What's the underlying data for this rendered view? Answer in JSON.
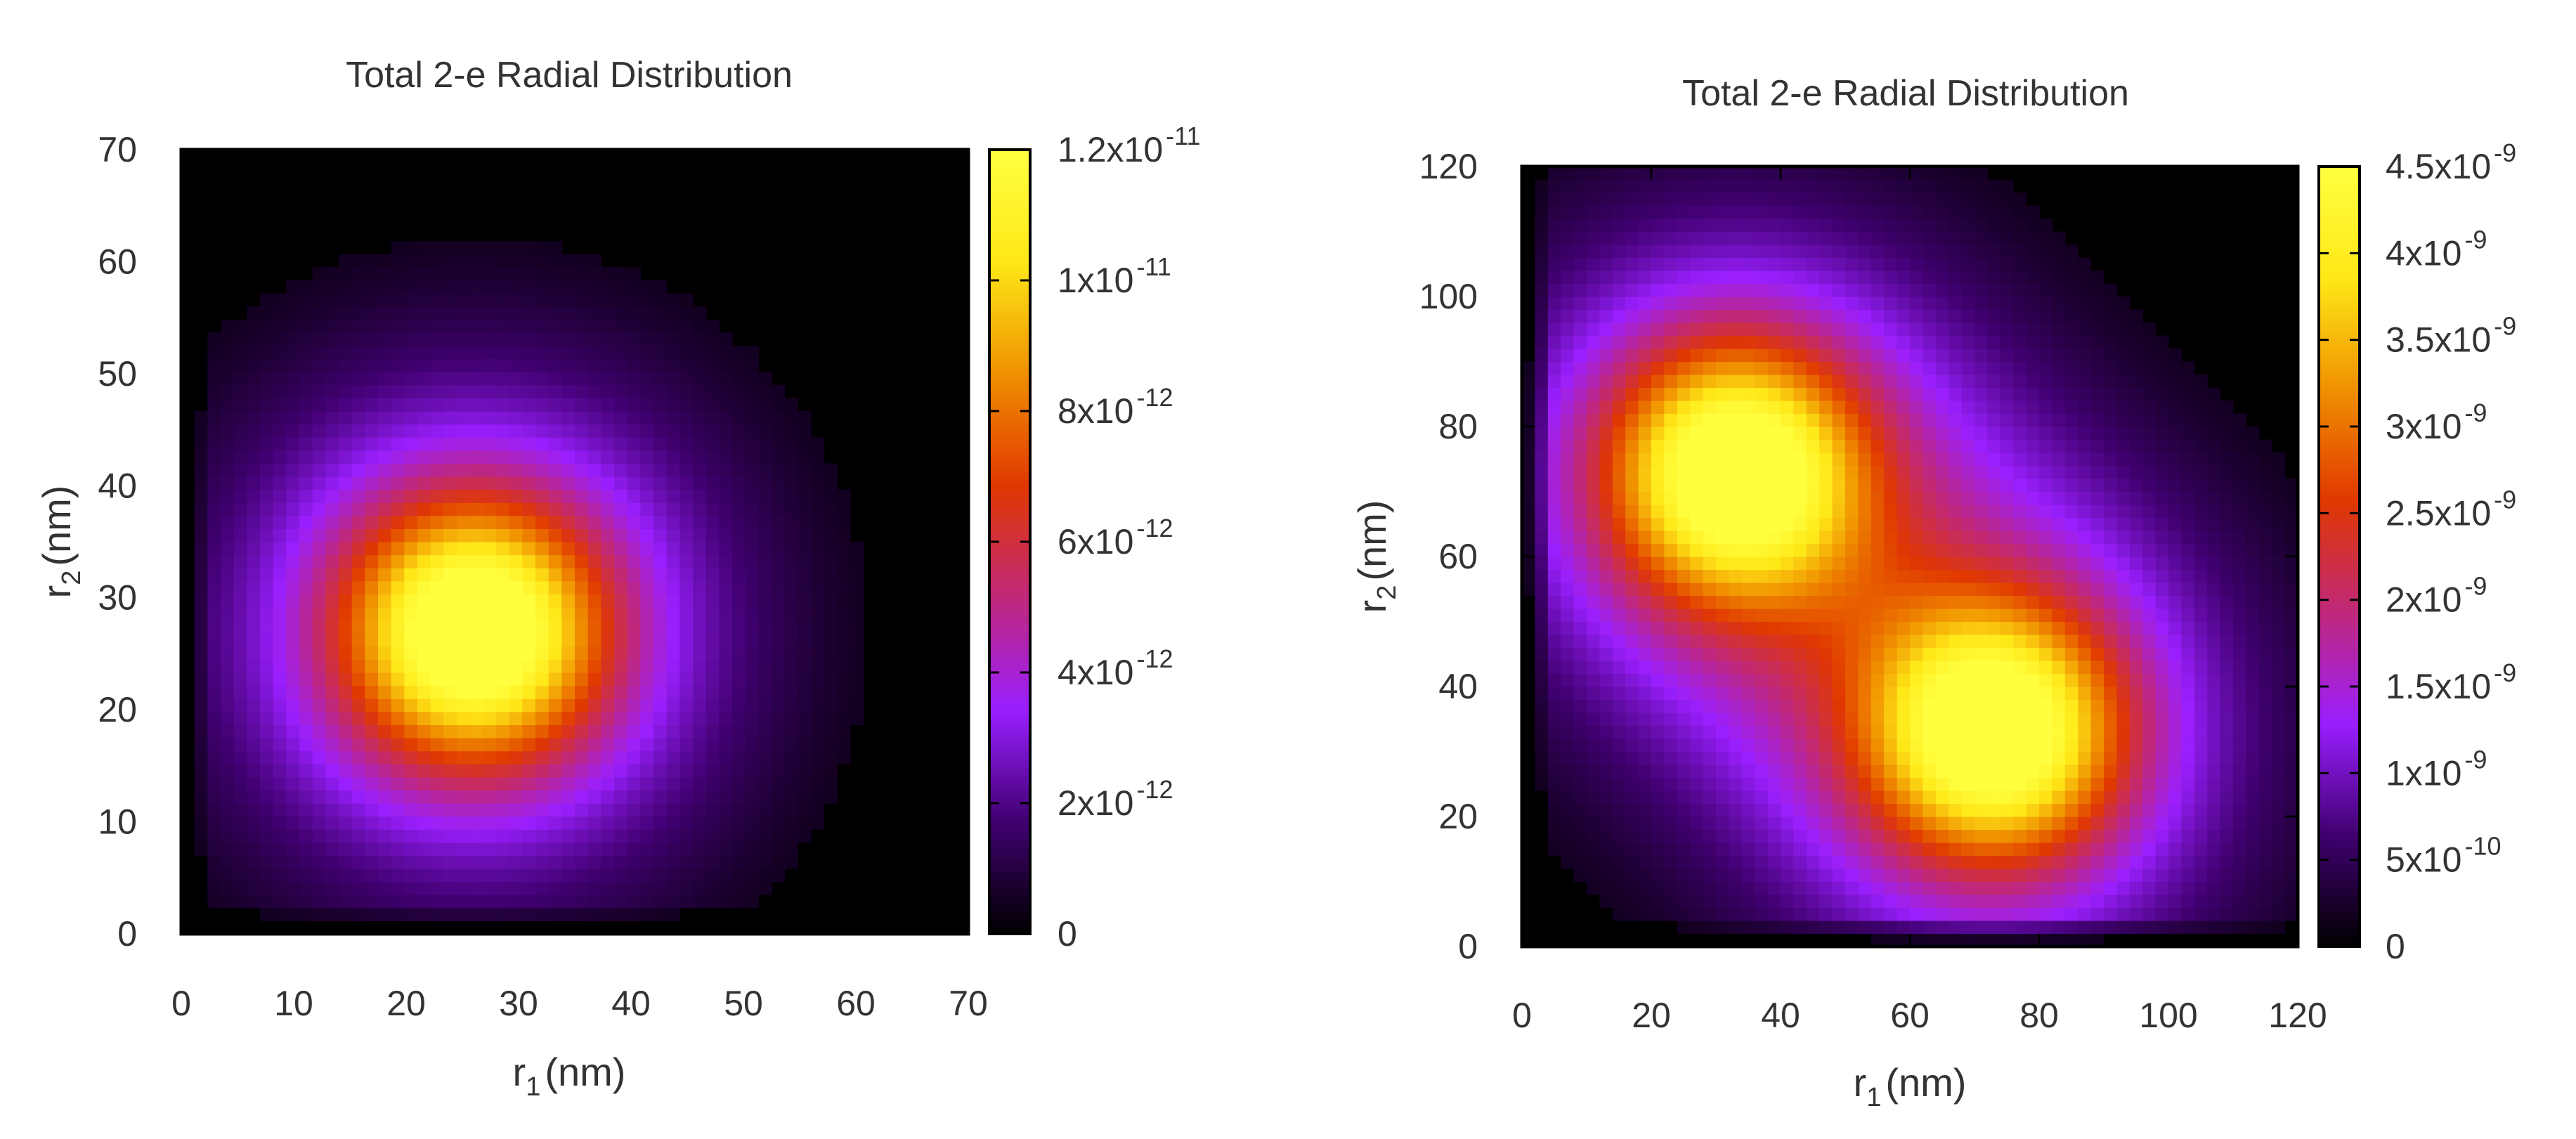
{
  "chart_data": [
    {
      "type": "heatmap",
      "title": "Total 2-e Radial Distribution",
      "xlabel": {
        "symbol": "r",
        "subscript": "1",
        "unit": "(nm)"
      },
      "ylabel": {
        "symbol": "r",
        "subscript": "2",
        "unit": "(nm)"
      },
      "xlim": [
        0,
        70
      ],
      "ylim": [
        0,
        70
      ],
      "x_ticks": [
        "0",
        "10",
        "20",
        "30",
        "40",
        "50",
        "60",
        "70"
      ],
      "x_tick_values": [
        0,
        10,
        20,
        30,
        40,
        50,
        60,
        70
      ],
      "y_ticks": [
        "0",
        "10",
        "20",
        "30",
        "40",
        "50",
        "60",
        "70"
      ],
      "y_tick_values": [
        0,
        10,
        20,
        30,
        40,
        50,
        60,
        70
      ],
      "colorbar": {
        "range": [
          0,
          1.2e-11
        ],
        "colormap": [
          "#000000",
          "#400070",
          "#9a1fff",
          "#c0287a",
          "#e03800",
          "#f09000",
          "#ffe818",
          "#ffff40"
        ],
        "ticks": [
          {
            "value": 0,
            "mantissa": "0",
            "exponent": ""
          },
          {
            "value": 2e-12,
            "mantissa": "2x10",
            "exponent": "-12"
          },
          {
            "value": 4e-12,
            "mantissa": "4x10",
            "exponent": "-12"
          },
          {
            "value": 6e-12,
            "mantissa": "6x10",
            "exponent": "-12"
          },
          {
            "value": 8e-12,
            "mantissa": "8x10",
            "exponent": "-12"
          },
          {
            "value": 1e-11,
            "mantissa": "1x10",
            "exponent": "-11"
          },
          {
            "value": 1.2e-11,
            "mantissa": "1.2x10",
            "exponent": "-11"
          }
        ]
      },
      "peaks": [
        {
          "x": 26,
          "y": 27,
          "value": 1.2e-11
        }
      ]
    },
    {
      "type": "heatmap",
      "title": "Total 2-e Radial Distribution",
      "xlabel": {
        "symbol": "r",
        "subscript": "1",
        "unit": "(nm)"
      },
      "ylabel": {
        "symbol": "r",
        "subscript": "2",
        "unit": "(nm)"
      },
      "xlim": [
        0,
        120
      ],
      "ylim": [
        0,
        120
      ],
      "x_ticks": [
        "0",
        "20",
        "40",
        "60",
        "80",
        "100",
        "120"
      ],
      "x_tick_values": [
        0,
        20,
        40,
        60,
        80,
        100,
        120
      ],
      "y_ticks": [
        "0",
        "20",
        "40",
        "60",
        "80",
        "100",
        "120"
      ],
      "y_tick_values": [
        0,
        20,
        40,
        60,
        80,
        100,
        120
      ],
      "colorbar": {
        "range": [
          0,
          4.5e-09
        ],
        "colormap": [
          "#000000",
          "#400070",
          "#9a1fff",
          "#c0287a",
          "#e03800",
          "#f09000",
          "#ffe818",
          "#ffff40"
        ],
        "ticks": [
          {
            "value": 0,
            "mantissa": "0",
            "exponent": ""
          },
          {
            "value": 5e-10,
            "mantissa": "5x10",
            "exponent": "-10"
          },
          {
            "value": 1e-09,
            "mantissa": "1x10",
            "exponent": "-9"
          },
          {
            "value": 1.5e-09,
            "mantissa": "1.5x10",
            "exponent": "-9"
          },
          {
            "value": 2e-09,
            "mantissa": "2x10",
            "exponent": "-9"
          },
          {
            "value": 2.5e-09,
            "mantissa": "2.5x10",
            "exponent": "-9"
          },
          {
            "value": 3e-09,
            "mantissa": "3x10",
            "exponent": "-9"
          },
          {
            "value": 3.5e-09,
            "mantissa": "3.5x10",
            "exponent": "-9"
          },
          {
            "value": 4e-09,
            "mantissa": "4x10",
            "exponent": "-9"
          },
          {
            "value": 4.5e-09,
            "mantissa": "4.5x10",
            "exponent": "-9"
          }
        ]
      },
      "peaks": [
        {
          "x": 33,
          "y": 73,
          "value": 4.5e-09
        },
        {
          "x": 73,
          "y": 33,
          "value": 4.5e-09
        }
      ]
    }
  ]
}
